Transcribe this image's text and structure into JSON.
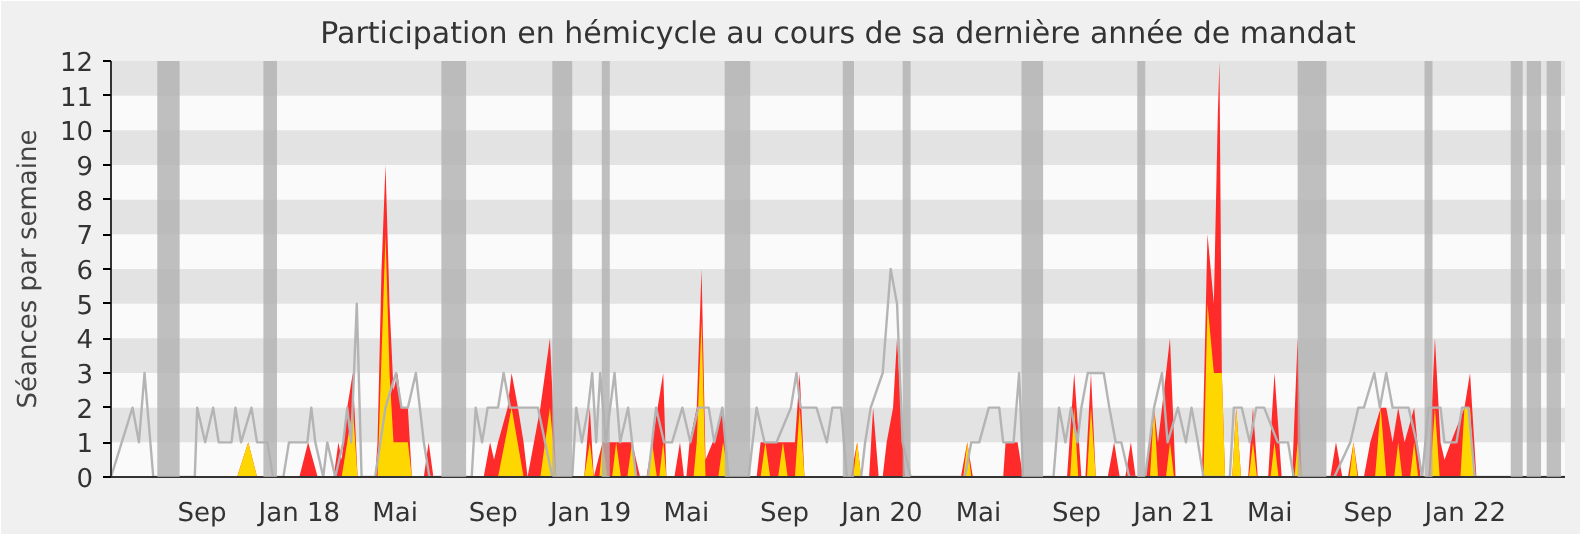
{
  "chart_data": {
    "type": "area",
    "title": "Participation en hémicycle au cours de sa dernière année de mandat",
    "ylabel": "Séances par semaine",
    "xlim": [
      "2017-05-10",
      "2022-05-06"
    ],
    "ylim": [
      0,
      12
    ],
    "yticks": [
      0,
      1,
      2,
      3,
      4,
      5,
      6,
      7,
      8,
      9,
      10,
      11,
      12
    ],
    "xticks": [
      {
        "value": "2017-09-01",
        "label": "Sep"
      },
      {
        "value": "2018-01-01",
        "label": "Jan 18"
      },
      {
        "value": "2018-05-01",
        "label": "Mai"
      },
      {
        "value": "2018-09-01",
        "label": "Sep"
      },
      {
        "value": "2019-01-01",
        "label": "Jan 19"
      },
      {
        "value": "2019-05-01",
        "label": "Mai"
      },
      {
        "value": "2019-09-01",
        "label": "Sep"
      },
      {
        "value": "2020-01-01",
        "label": "Jan 20"
      },
      {
        "value": "2020-05-01",
        "label": "Mai"
      },
      {
        "value": "2020-09-01",
        "label": "Sep"
      },
      {
        "value": "2021-01-01",
        "label": "Jan 21"
      },
      {
        "value": "2021-05-01",
        "label": "Mai"
      },
      {
        "value": "2021-09-01",
        "label": "Sep"
      },
      {
        "value": "2022-01-01",
        "label": "Jan 22"
      }
    ],
    "bands": [
      {
        "axis": "y",
        "from": 1,
        "to": 2,
        "color": "#e3e3e3"
      },
      {
        "axis": "y",
        "from": 3,
        "to": 4,
        "color": "#e3e3e3"
      },
      {
        "axis": "y",
        "from": 5,
        "to": 6,
        "color": "#e3e3e3"
      },
      {
        "axis": "y",
        "from": 7,
        "to": 8,
        "color": "#e3e3e3"
      },
      {
        "axis": "y",
        "from": 9,
        "to": 10,
        "color": "#e3e3e3"
      },
      {
        "axis": "y",
        "from": 11,
        "to": 12,
        "color": "#e3e3e3"
      },
      {
        "axis": "x",
        "from": "2017-07-07",
        "to": "2017-08-04",
        "color": "#b0b0b0"
      },
      {
        "axis": "x",
        "from": "2017-11-17",
        "to": "2017-12-04",
        "color": "#b0b0b0"
      },
      {
        "axis": "x",
        "from": "2018-06-28",
        "to": "2018-07-29",
        "color": "#b0b0b0"
      },
      {
        "axis": "x",
        "from": "2018-11-14",
        "to": "2018-12-09",
        "color": "#b0b0b0"
      },
      {
        "axis": "x",
        "from": "2019-01-15",
        "to": "2019-01-25",
        "color": "#b0b0b0"
      },
      {
        "axis": "x",
        "from": "2019-06-18",
        "to": "2019-07-20",
        "color": "#b0b0b0"
      },
      {
        "axis": "x",
        "from": "2019-11-13",
        "to": "2019-11-27",
        "color": "#b0b0b0"
      },
      {
        "axis": "x",
        "from": "2020-01-27",
        "to": "2020-02-06",
        "color": "#b0b0b0"
      },
      {
        "axis": "x",
        "from": "2020-06-24",
        "to": "2020-07-21",
        "color": "#b0b0b0"
      },
      {
        "axis": "x",
        "from": "2020-11-16",
        "to": "2020-11-26",
        "color": "#b0b0b0"
      },
      {
        "axis": "x",
        "from": "2021-06-05",
        "to": "2021-07-11",
        "color": "#b0b0b0"
      },
      {
        "axis": "x",
        "from": "2021-11-11",
        "to": "2021-11-21",
        "color": "#b0b0b0"
      },
      {
        "axis": "x",
        "from": "2022-02-27",
        "to": "2022-03-14",
        "color": "#b0b0b0"
      },
      {
        "axis": "x",
        "from": "2022-03-19",
        "to": "2022-04-06",
        "color": "#b0b0b0"
      },
      {
        "axis": "x",
        "from": "2022-04-13",
        "to": "2022-05-01",
        "color": "#b0b0b0"
      }
    ],
    "series": [
      {
        "type": "line",
        "color": "#b4b4b4",
        "x": [
          "2017-05-10",
          "2017-06-06",
          "2017-06-14",
          "2017-06-21",
          "2017-07-02",
          "2017-08-23",
          "2017-08-26",
          "2017-09-05",
          "2017-09-15",
          "2017-09-22",
          "2017-10-08",
          "2017-10-13",
          "2017-10-20",
          "2017-11-02",
          "2017-11-09",
          "2017-11-22",
          "2017-11-29",
          "2017-12-12",
          "2017-12-19",
          "2018-01-01",
          "2018-01-11",
          "2018-01-16",
          "2018-01-21",
          "2018-01-31",
          "2018-02-05",
          "2018-02-15",
          "2018-02-25",
          "2018-03-02",
          "2018-03-07",
          "2018-03-14",
          "2018-03-20",
          "2018-04-06",
          "2018-04-19",
          "2018-05-02",
          "2018-05-09",
          "2018-05-17",
          "2018-05-27",
          "2018-06-06",
          "2018-06-13",
          "2018-08-05",
          "2018-08-10",
          "2018-08-18",
          "2018-08-25",
          "2018-09-07",
          "2018-09-14",
          "2018-09-22",
          "2018-10-02",
          "2018-10-14",
          "2018-10-27",
          "2018-11-14",
          "2018-12-09",
          "2018-12-14",
          "2018-12-21",
          "2018-12-29",
          "2019-01-03",
          "2019-01-08",
          "2019-01-13",
          "2019-01-20",
          "2019-01-31",
          "2019-02-07",
          "2019-02-17",
          "2019-02-27",
          "2019-03-14",
          "2019-03-24",
          "2019-04-03",
          "2019-04-13",
          "2019-04-26",
          "2019-05-06",
          "2019-05-16",
          "2019-05-29",
          "2019-06-05",
          "2019-06-15",
          "2019-06-23",
          "2019-07-18",
          "2019-07-28",
          "2019-08-07",
          "2019-08-22",
          "2019-09-09",
          "2019-09-16",
          "2019-09-21",
          "2019-10-11",
          "2019-10-24",
          "2019-10-31",
          "2019-11-11",
          "2019-11-18",
          "2019-12-06",
          "2019-12-11",
          "2019-12-18",
          "2020-01-02",
          "2020-01-12",
          "2020-01-20",
          "2020-01-27",
          "2020-02-06",
          "2020-04-14",
          "2020-04-22",
          "2020-05-02",
          "2020-05-14",
          "2020-05-27",
          "2020-06-01",
          "2020-06-14",
          "2020-06-21",
          "2020-06-26",
          "2020-08-03",
          "2020-08-10",
          "2020-08-18",
          "2020-08-25",
          "2020-09-02",
          "2020-09-07",
          "2020-09-15",
          "2020-09-25",
          "2020-10-05",
          "2020-10-12",
          "2020-10-20",
          "2020-10-27",
          "2020-11-06",
          "2020-11-26",
          "2020-12-07",
          "2020-12-17",
          "2020-12-24",
          "2021-01-06",
          "2021-01-16",
          "2021-01-23",
          "2021-01-31",
          "2021-02-07",
          "2021-03-12",
          "2021-03-17",
          "2021-03-27",
          "2021-04-06",
          "2021-04-14",
          "2021-04-24",
          "2021-05-11",
          "2021-05-24",
          "2021-05-31",
          "2021-06-10",
          "2021-07-21",
          "2021-08-10",
          "2021-08-20",
          "2021-08-27",
          "2021-09-09",
          "2021-09-16",
          "2021-09-24",
          "2021-10-02",
          "2021-10-12",
          "2021-10-22",
          "2021-11-01",
          "2021-11-08",
          "2021-11-16",
          "2021-12-01",
          "2021-12-06",
          "2021-12-21",
          "2021-12-28",
          "2022-01-05",
          "2022-01-13",
          "2022-05-06"
        ],
        "values": [
          0,
          2,
          1,
          3,
          0,
          0,
          2,
          1,
          2,
          1,
          1,
          2,
          1,
          2,
          1,
          1,
          0,
          0,
          1,
          1,
          1,
          2,
          1,
          0,
          1,
          0,
          1,
          2,
          1,
          5,
          0,
          0,
          2,
          3,
          2,
          2,
          3,
          1,
          0,
          0,
          2,
          1,
          2,
          2,
          3,
          2,
          2,
          2,
          2,
          0,
          0,
          2,
          1,
          2,
          3,
          1,
          3,
          1,
          3,
          1,
          2,
          0,
          0,
          2,
          1,
          1,
          2,
          1,
          2,
          2,
          1,
          2,
          0,
          0,
          2,
          1,
          1,
          2,
          3,
          2,
          2,
          1,
          2,
          2,
          0,
          0,
          1,
          2,
          3,
          6,
          5,
          1,
          0,
          0,
          1,
          1,
          2,
          2,
          1,
          1,
          3,
          0,
          0,
          2,
          1,
          2,
          1,
          2,
          3,
          3,
          3,
          2,
          1,
          1,
          0,
          0,
          2,
          3,
          1,
          2,
          1,
          2,
          1,
          0,
          0,
          2,
          2,
          1,
          2,
          2,
          1,
          1,
          0,
          0,
          0,
          1,
          2,
          2,
          3,
          2,
          3,
          2,
          2,
          2,
          1,
          0,
          2,
          2,
          1,
          1,
          2,
          2,
          0,
          0
        ]
      },
      {
        "color": "#ff2a2a",
        "x": [
          "2017-05-10",
          "2017-10-15",
          "2017-10-29",
          "2017-11-09",
          "2018-01-01",
          "2018-01-12",
          "2018-01-24",
          "2018-02-13",
          "2018-02-19",
          "2018-02-23",
          "2018-03-02",
          "2018-03-09",
          "2018-03-15",
          "2018-04-06",
          "2018-04-09",
          "2018-04-14",
          "2018-04-19",
          "2018-04-24",
          "2018-04-29",
          "2018-05-04",
          "2018-05-09",
          "2018-05-17",
          "2018-05-22",
          "2018-06-06",
          "2018-06-12",
          "2018-06-18",
          "2018-08-20",
          "2018-08-28",
          "2018-09-02",
          "2018-09-07",
          "2018-09-19",
          "2018-09-24",
          "2018-10-02",
          "2018-10-09",
          "2018-10-14",
          "2018-10-30",
          "2018-11-11",
          "2018-11-19",
          "2018-12-24",
          "2018-12-31",
          "2019-01-05",
          "2019-01-16",
          "2019-02-12",
          "2019-02-22",
          "2019-03-04",
          "2019-03-12",
          "2019-03-19",
          "2019-04-02",
          "2019-04-06",
          "2019-04-16",
          "2019-04-23",
          "2019-04-28",
          "2019-05-01",
          "2019-05-05",
          "2019-05-14",
          "2019-05-20",
          "2019-05-25",
          "2019-06-03",
          "2019-06-16",
          "2019-06-23",
          "2019-07-28",
          "2019-08-02",
          "2019-09-06",
          "2019-09-14",
          "2019-09-20",
          "2019-09-26",
          "2019-11-23",
          "2019-12-01",
          "2019-12-06",
          "2019-12-16",
          "2019-12-21",
          "2019-12-28",
          "2020-01-02",
          "2020-01-07",
          "2020-01-15",
          "2020-01-20",
          "2020-01-30",
          "2020-04-09",
          "2020-04-17",
          "2020-04-24",
          "2020-06-01",
          "2020-06-04",
          "2020-06-19",
          "2020-06-26",
          "2020-08-20",
          "2020-08-29",
          "2020-09-07",
          "2020-09-12",
          "2020-09-19",
          "2020-09-25",
          "2020-10-10",
          "2020-10-18",
          "2020-10-25",
          "2020-11-01",
          "2020-11-08",
          "2020-11-14",
          "2020-11-26",
          "2020-12-07",
          "2020-12-12",
          "2020-12-17",
          "2020-12-27",
          "2021-01-03",
          "2021-02-05",
          "2021-02-12",
          "2021-02-20",
          "2021-02-25",
          "2021-02-27",
          "2021-03-02",
          "2021-03-06",
          "2021-03-15",
          "2021-03-20",
          "2021-03-26",
          "2021-04-04",
          "2021-04-10",
          "2021-04-16",
          "2021-04-29",
          "2021-05-07",
          "2021-05-16",
          "2021-05-29",
          "2021-06-05",
          "2021-06-10",
          "2021-07-16",
          "2021-07-23",
          "2021-07-31",
          "2021-08-07",
          "2021-08-14",
          "2021-08-20",
          "2021-08-27",
          "2021-09-04",
          "2021-09-17",
          "2021-09-24",
          "2021-10-02",
          "2021-10-09",
          "2021-10-17",
          "2021-10-29",
          "2021-11-06",
          "2021-11-16",
          "2021-11-24",
          "2021-12-01",
          "2021-12-06",
          "2021-12-14",
          "2021-12-31",
          "2022-01-07",
          "2022-01-15",
          "2022-05-06"
        ],
        "values": [
          0,
          0,
          1,
          0,
          0,
          1,
          0,
          0,
          1,
          0.5,
          2,
          3,
          0,
          0,
          1,
          6,
          9,
          5,
          2.5,
          3,
          2,
          2,
          0,
          0,
          1,
          0,
          0,
          1,
          0.5,
          1,
          2,
          3,
          2,
          1,
          0,
          2,
          4,
          0,
          0,
          2,
          0,
          1,
          1,
          1,
          0,
          0,
          1,
          3,
          0,
          0,
          1,
          0,
          0,
          1,
          2,
          6,
          0.5,
          1,
          2,
          0,
          0,
          1,
          1,
          1,
          3,
          0,
          0,
          1,
          0,
          0,
          2,
          0,
          0,
          1,
          2,
          4,
          0,
          0,
          1,
          0,
          0,
          1,
          1,
          0,
          0,
          3,
          0,
          0,
          3,
          0,
          0,
          1,
          0,
          0,
          1,
          0,
          0,
          2,
          1,
          2,
          4,
          0,
          0,
          7,
          5,
          10.5,
          12,
          3,
          0,
          0,
          2,
          0,
          0,
          2,
          0,
          0,
          3,
          0,
          0,
          4,
          0,
          0,
          1,
          0,
          0,
          1,
          0,
          0,
          1,
          2,
          2,
          1,
          2,
          1,
          2,
          0,
          0,
          4,
          1,
          0.5,
          1,
          2,
          3,
          0,
          0
        ]
      },
      {
        "color": "#ffd700",
        "x": [
          "2017-05-10",
          "2017-10-15",
          "2017-10-29",
          "2017-11-09",
          "2018-02-23",
          "2018-03-09",
          "2018-03-15",
          "2018-04-09",
          "2018-04-19",
          "2018-04-24",
          "2018-04-29",
          "2018-05-17",
          "2018-05-22",
          "2018-09-07",
          "2018-09-24",
          "2018-10-09",
          "2018-10-30",
          "2018-11-11",
          "2018-11-19",
          "2018-12-24",
          "2018-12-31",
          "2019-01-05",
          "2019-01-12",
          "2019-01-16",
          "2019-01-22",
          "2019-01-28",
          "2019-02-02",
          "2019-02-08",
          "2019-02-16",
          "2019-02-22",
          "2019-02-28",
          "2019-03-14",
          "2019-03-19",
          "2019-03-25",
          "2019-03-28",
          "2019-04-02",
          "2019-04-06",
          "2019-05-10",
          "2019-05-14",
          "2019-05-20",
          "2019-05-25",
          "2019-06-10",
          "2019-06-16",
          "2019-06-23",
          "2019-08-02",
          "2019-08-08",
          "2019-08-14",
          "2019-08-24",
          "2019-08-30",
          "2019-09-05",
          "2019-09-14",
          "2019-09-20",
          "2019-09-26",
          "2019-11-26",
          "2019-12-01",
          "2019-12-06",
          "2020-04-12",
          "2020-04-17",
          "2020-04-22",
          "2020-08-24",
          "2020-08-29",
          "2020-09-03",
          "2020-09-14",
          "2020-09-19",
          "2020-09-25",
          "2020-12-02",
          "2020-12-07",
          "2020-12-12",
          "2020-12-22",
          "2020-12-27",
          "2021-01-01",
          "2021-02-07",
          "2021-02-12",
          "2021-02-20",
          "2021-02-27",
          "2021-03-02",
          "2021-03-06",
          "2021-03-15",
          "2021-03-20",
          "2021-03-26",
          "2021-04-05",
          "2021-04-10",
          "2021-04-15",
          "2021-05-02",
          "2021-05-07",
          "2021-05-12",
          "2021-06-01",
          "2021-06-05",
          "2021-06-10",
          "2021-08-09",
          "2021-08-14",
          "2021-08-19",
          "2021-09-10",
          "2021-09-17",
          "2021-09-24",
          "2021-10-04",
          "2021-10-09",
          "2021-10-14",
          "2021-10-24",
          "2021-10-29",
          "2021-11-03",
          "2021-11-18",
          "2021-11-24",
          "2021-11-30",
          "2021-12-26",
          "2021-12-31",
          "2022-01-07",
          "2022-01-12",
          "2022-05-06"
        ],
        "values": [
          0,
          0,
          1,
          0,
          0,
          2,
          0,
          0,
          7,
          3,
          1,
          1,
          0,
          0,
          2,
          0,
          0,
          2,
          0,
          0,
          1,
          0,
          0,
          1,
          0,
          0,
          1,
          0,
          0,
          1,
          0,
          0,
          1,
          0,
          0,
          1,
          0,
          0,
          1,
          4.5,
          0,
          0,
          1,
          0,
          0,
          1,
          0,
          0,
          1,
          0,
          0,
          2,
          0,
          0,
          1,
          0,
          0,
          1,
          0,
          0,
          2,
          0,
          0,
          2,
          0,
          0,
          2,
          0,
          0,
          1,
          0,
          0,
          5,
          3,
          3,
          3,
          0,
          0,
          2,
          0,
          0,
          1,
          0,
          0,
          1,
          0,
          0,
          1,
          0,
          0,
          1,
          0,
          0,
          2,
          0,
          0,
          1,
          0,
          0,
          1,
          0,
          0,
          2,
          0,
          0,
          2,
          2,
          0,
          0
        ]
      }
    ]
  }
}
